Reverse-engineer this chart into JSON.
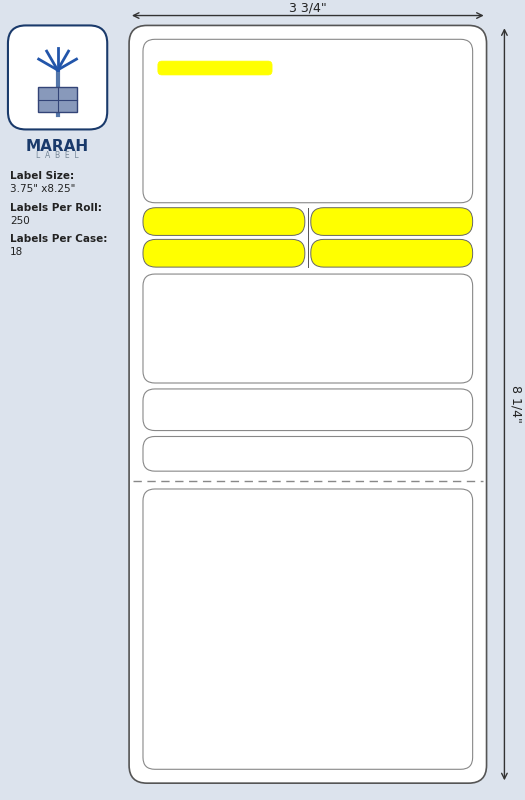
{
  "bg_color": "#dce3ed",
  "label_bg": "#ffffff",
  "yellow": "#ffff00",
  "dark_blue": "#1a3a6b",
  "gray_border": "#888888",
  "dark_border": "#555555",
  "title_width_text": "3 3/4\"",
  "title_height_text": "8 1/4\"",
  "label_size_text": "Label Size:",
  "label_size_val": "3.75\" x8.25\"",
  "per_roll_text": "Labels Per Roll:",
  "per_roll_val": "250",
  "per_case_text": "Labels Per Case:",
  "per_case_val": "18",
  "fig_width": 5.25,
  "fig_height": 8.0
}
